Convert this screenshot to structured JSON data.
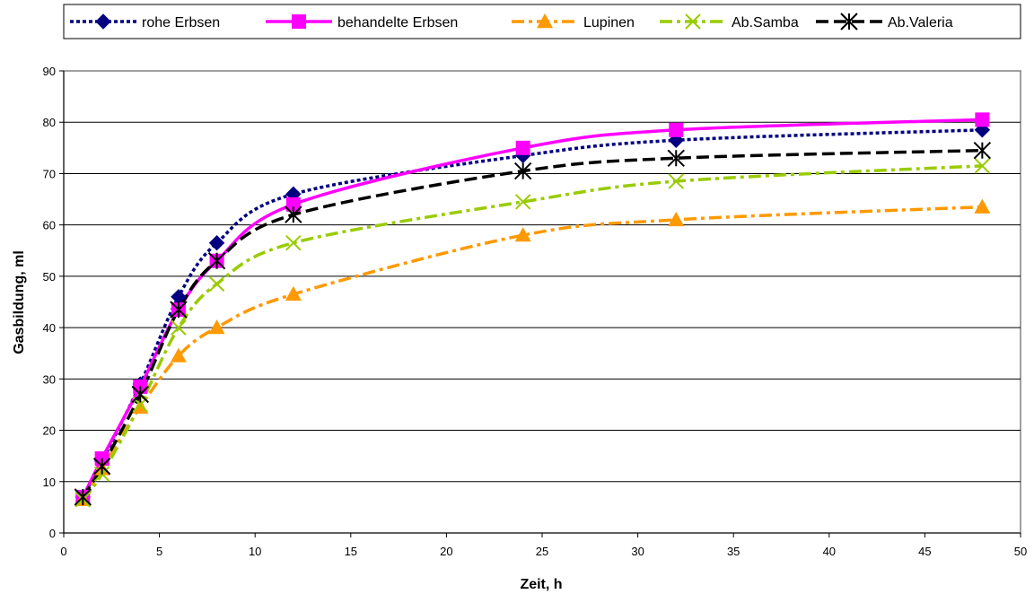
{
  "chart_data": {
    "type": "line",
    "title": "",
    "xlabel": "Zeit, h",
    "ylabel": "Gasbildung, ml",
    "xlim": [
      0,
      50
    ],
    "ylim": [
      0,
      90
    ],
    "x_ticks": [
      0,
      5,
      10,
      15,
      20,
      25,
      30,
      35,
      40,
      45,
      50
    ],
    "y_ticks": [
      0,
      10,
      20,
      30,
      40,
      50,
      60,
      70,
      80,
      90
    ],
    "grid": "horizontal",
    "legend_position": "top",
    "series": [
      {
        "name": "rohe Erbsen",
        "color": "#000080",
        "line_style": "dotted",
        "marker": "diamond",
        "x": [
          1,
          2,
          4,
          6,
          8,
          12,
          24,
          32,
          48
        ],
        "y": [
          7,
          14,
          29,
          46,
          56.5,
          66,
          73.5,
          76.5,
          78.5
        ]
      },
      {
        "name": "behandelte Erbsen",
        "color": "#FF00FF",
        "line_style": "solid",
        "marker": "square",
        "x": [
          1,
          2,
          4,
          6,
          8,
          12,
          24,
          32,
          48
        ],
        "y": [
          7,
          14.5,
          28.5,
          43.5,
          53,
          64,
          75,
          78.5,
          80.5
        ]
      },
      {
        "name": "Lupinen",
        "color": "#FF9900",
        "line_style": "dashdot",
        "marker": "triangle",
        "x": [
          1,
          2,
          4,
          6,
          8,
          12,
          24,
          32,
          48
        ],
        "y": [
          6.5,
          12.5,
          24.5,
          34.5,
          40,
          46.5,
          58,
          61,
          63.5
        ]
      },
      {
        "name": "Ab.Samba",
        "color": "#99CC00",
        "line_style": "dashdot",
        "marker": "x",
        "x": [
          1,
          2,
          4,
          6,
          8,
          12,
          24,
          32,
          48
        ],
        "y": [
          6.5,
          11.5,
          25,
          40,
          48.5,
          56.5,
          64.5,
          68.5,
          71.5
        ]
      },
      {
        "name": "Ab.Valeria",
        "color": "#000000",
        "line_style": "dashed",
        "marker": "star",
        "x": [
          1,
          2,
          4,
          6,
          8,
          12,
          24,
          32,
          48
        ],
        "y": [
          7,
          13,
          27,
          43.5,
          53,
          62,
          70.5,
          73,
          74.5
        ]
      }
    ]
  }
}
